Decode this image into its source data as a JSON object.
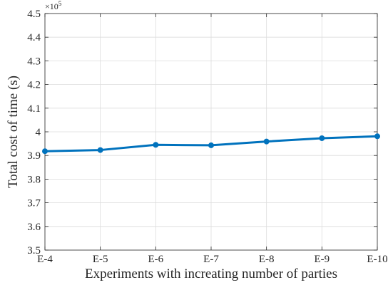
{
  "chart_data": {
    "type": "line",
    "categories": [
      "E-4",
      "E-5",
      "E-6",
      "E-7",
      "E-8",
      "E-9",
      "E-10"
    ],
    "series": [
      {
        "values": [
          391800,
          392300,
          394500,
          394300,
          395900,
          397300,
          398100
        ]
      }
    ],
    "ylim": [
      3.5,
      4.5
    ],
    "yticks": [
      "3.5",
      "3.6",
      "3.7",
      "3.8",
      "3.9",
      "4",
      "4.1",
      "4.2",
      "4.3",
      "4.4",
      "4.5"
    ],
    "y_multiplier": {
      "base": "×10",
      "exponent": "5"
    },
    "xlabel": "Experiments with increating number of parties",
    "ylabel": "Total cost of time (s)",
    "grid": true,
    "line_color": "#0072BD"
  }
}
